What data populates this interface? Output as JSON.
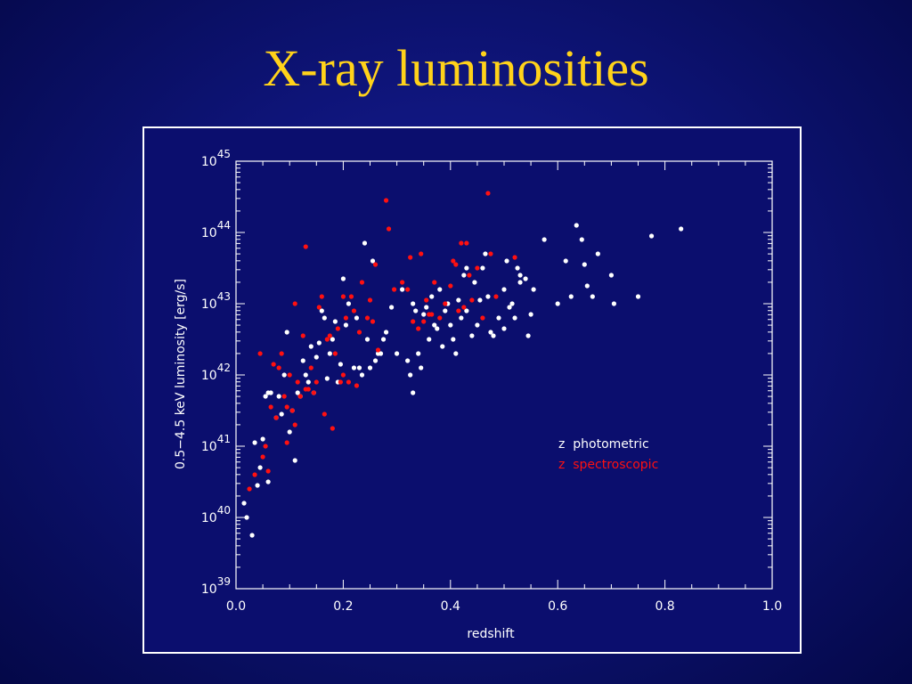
{
  "slide": {
    "title": "X-ray luminosities"
  },
  "colors": {
    "background": "#0e1478",
    "title": "#ffd21a",
    "frame": "#ffffff",
    "photometric": "#ffffff",
    "spectroscopic": "#ff1010"
  },
  "chart_data": {
    "type": "scatter",
    "title": "",
    "xlabel": "redshift",
    "ylabel": "0.5−4.5 keV luminosity [erg/s]",
    "xlim": [
      0.0,
      1.0
    ],
    "ylim": [
      39,
      45
    ],
    "y_scale": "log",
    "x_ticks": [
      "0.0",
      "0.2",
      "0.4",
      "0.6",
      "0.8",
      "1.0"
    ],
    "y_ticks": [
      {
        "base": "10",
        "exp": "39"
      },
      {
        "base": "10",
        "exp": "40"
      },
      {
        "base": "10",
        "exp": "41"
      },
      {
        "base": "10",
        "exp": "42"
      },
      {
        "base": "10",
        "exp": "43"
      },
      {
        "base": "10",
        "exp": "44"
      },
      {
        "base": "10",
        "exp": "45"
      }
    ],
    "legend_position": "lower-right",
    "series": [
      {
        "name": "z  photometric",
        "color": "#ffffff",
        "x": [
          0.015,
          0.02,
          0.03,
          0.04,
          0.045,
          0.05,
          0.055,
          0.06,
          0.065,
          0.075,
          0.085,
          0.095,
          0.1,
          0.105,
          0.11,
          0.12,
          0.125,
          0.13,
          0.14,
          0.15,
          0.16,
          0.165,
          0.175,
          0.18,
          0.19,
          0.2,
          0.205,
          0.21,
          0.22,
          0.225,
          0.235,
          0.24,
          0.245,
          0.25,
          0.255,
          0.26,
          0.265,
          0.27,
          0.275,
          0.28,
          0.3,
          0.31,
          0.32,
          0.325,
          0.33,
          0.335,
          0.34,
          0.345,
          0.35,
          0.36,
          0.365,
          0.37,
          0.38,
          0.385,
          0.39,
          0.4,
          0.405,
          0.41,
          0.415,
          0.42,
          0.425,
          0.43,
          0.44,
          0.445,
          0.45,
          0.46,
          0.465,
          0.47,
          0.475,
          0.48,
          0.49,
          0.5,
          0.505,
          0.51,
          0.515,
          0.52,
          0.525,
          0.53,
          0.54,
          0.545,
          0.55,
          0.555,
          0.575,
          0.6,
          0.615,
          0.625,
          0.635,
          0.645,
          0.65,
          0.655,
          0.665,
          0.675,
          0.7,
          0.705,
          0.75,
          0.775,
          0.83,
          0.035,
          0.06,
          0.08,
          0.09,
          0.115,
          0.135,
          0.145,
          0.155,
          0.17,
          0.185,
          0.195,
          0.23,
          0.29,
          0.33,
          0.355,
          0.375,
          0.395,
          0.43,
          0.455,
          0.5,
          0.53
        ],
        "y": [
          40.2,
          40.0,
          39.75,
          40.45,
          40.7,
          41.1,
          41.7,
          40.5,
          41.75,
          41.4,
          41.45,
          42.6,
          41.2,
          41.5,
          40.8,
          41.7,
          42.2,
          42.0,
          42.4,
          42.25,
          42.9,
          42.8,
          42.3,
          42.5,
          41.9,
          43.35,
          42.7,
          43.0,
          42.1,
          42.8,
          42.0,
          43.85,
          42.5,
          42.1,
          43.6,
          42.2,
          42.3,
          42.3,
          42.5,
          42.6,
          42.3,
          43.2,
          42.2,
          42.0,
          43.0,
          42.9,
          42.3,
          42.1,
          42.85,
          42.5,
          43.1,
          42.7,
          43.2,
          42.4,
          42.9,
          42.7,
          42.5,
          42.3,
          43.05,
          42.8,
          43.4,
          42.9,
          42.55,
          43.3,
          42.7,
          43.5,
          43.7,
          43.1,
          42.6,
          42.55,
          42.8,
          43.2,
          43.6,
          42.95,
          43.0,
          42.8,
          43.5,
          43.4,
          43.35,
          42.55,
          42.85,
          43.2,
          43.9,
          43.0,
          43.6,
          43.1,
          44.1,
          43.9,
          43.55,
          43.25,
          43.1,
          43.7,
          43.4,
          43.0,
          43.1,
          43.95,
          44.05,
          41.05,
          41.75,
          41.7,
          42.0,
          41.75,
          41.9,
          41.75,
          42.45,
          41.95,
          42.75,
          42.15,
          42.1,
          42.95,
          41.75,
          42.95,
          42.65,
          43.0,
          43.5,
          43.05,
          42.65,
          43.3
        ]
      },
      {
        "name": "z  spectroscopic",
        "color": "#ff1010",
        "x": [
          0.025,
          0.035,
          0.045,
          0.05,
          0.055,
          0.06,
          0.07,
          0.075,
          0.08,
          0.085,
          0.09,
          0.095,
          0.1,
          0.105,
          0.11,
          0.115,
          0.12,
          0.125,
          0.13,
          0.135,
          0.14,
          0.145,
          0.15,
          0.155,
          0.16,
          0.165,
          0.17,
          0.18,
          0.185,
          0.19,
          0.195,
          0.2,
          0.205,
          0.21,
          0.215,
          0.22,
          0.225,
          0.23,
          0.235,
          0.245,
          0.25,
          0.26,
          0.265,
          0.28,
          0.285,
          0.295,
          0.31,
          0.325,
          0.33,
          0.34,
          0.345,
          0.355,
          0.36,
          0.37,
          0.38,
          0.39,
          0.4,
          0.41,
          0.415,
          0.42,
          0.425,
          0.43,
          0.435,
          0.44,
          0.45,
          0.46,
          0.47,
          0.475,
          0.485,
          0.52,
          0.065,
          0.095,
          0.11,
          0.13,
          0.175,
          0.2,
          0.255,
          0.32,
          0.35,
          0.365,
          0.405
        ],
        "y": [
          40.4,
          40.6,
          42.3,
          40.85,
          41.0,
          40.65,
          42.15,
          41.4,
          42.1,
          42.3,
          41.7,
          41.55,
          42.0,
          41.5,
          43.0,
          41.9,
          41.7,
          42.55,
          43.8,
          41.8,
          42.1,
          41.75,
          41.9,
          42.95,
          43.1,
          41.45,
          42.5,
          41.25,
          42.3,
          42.65,
          41.9,
          43.1,
          42.8,
          41.9,
          43.1,
          42.9,
          41.85,
          42.6,
          43.3,
          42.8,
          43.05,
          43.55,
          42.35,
          44.45,
          44.05,
          43.2,
          43.3,
          43.65,
          42.75,
          42.65,
          43.7,
          43.05,
          42.85,
          43.3,
          42.8,
          43.0,
          43.25,
          43.55,
          42.9,
          43.85,
          42.95,
          43.85,
          43.4,
          43.05,
          43.5,
          42.8,
          44.55,
          43.7,
          43.1,
          43.65,
          41.55,
          41.05,
          41.3,
          41.8,
          42.55,
          42.0,
          42.75,
          43.2,
          42.75,
          42.85,
          43.6
        ]
      }
    ]
  }
}
